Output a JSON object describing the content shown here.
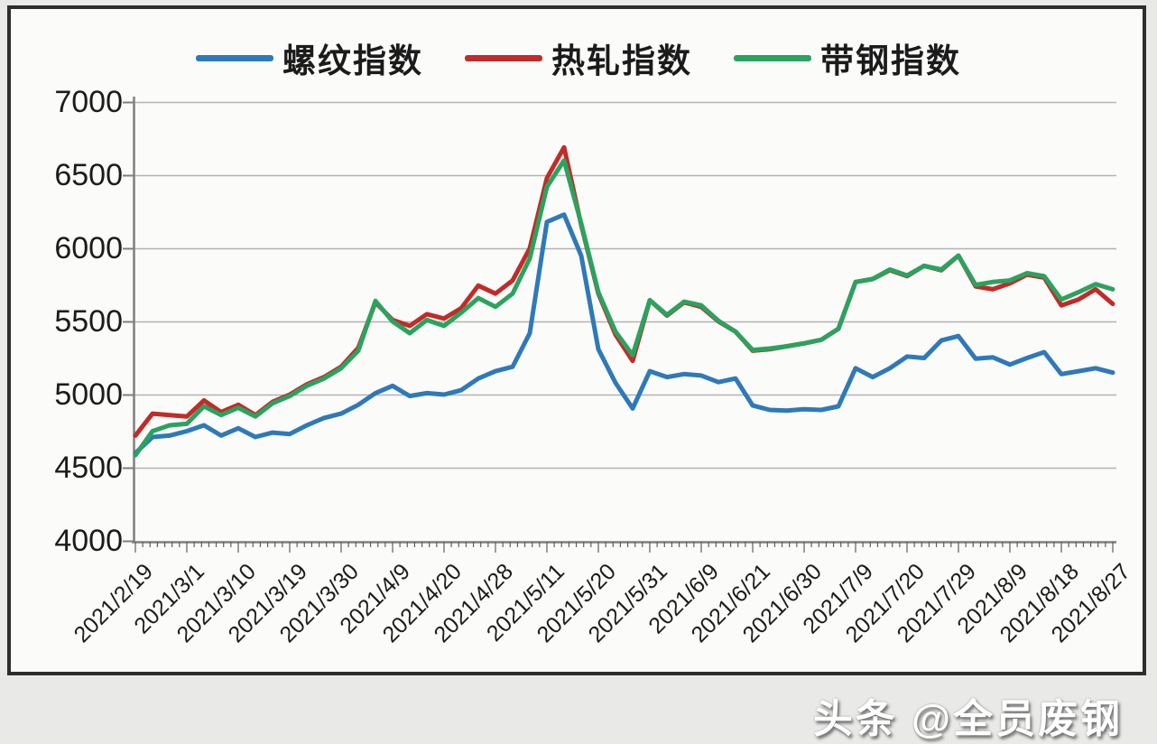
{
  "page": {
    "watermark": "头条 @全员废钢",
    "background_color": "#e9e9e7",
    "card_background": "#fbfbf9",
    "card_border_color": "#2d2d2d"
  },
  "chart_data": {
    "type": "line",
    "title": "",
    "legend_position": "top",
    "grid": "horizontal",
    "y_axis": {
      "min": 4000,
      "max": 7000,
      "step": 500,
      "tick_labels": [
        "7000",
        "6500",
        "6000",
        "5500",
        "5000",
        "4500",
        "4000"
      ]
    },
    "x_tick_labels": [
      "2021/2/19",
      "2021/3/1",
      "2021/3/10",
      "2021/3/19",
      "2021/3/30",
      "2021/4/9",
      "2021/4/20",
      "2021/4/28",
      "2021/5/11",
      "2021/5/20",
      "2021/5/31",
      "2021/6/9",
      "2021/6/21",
      "2021/6/30",
      "2021/7/9",
      "2021/7/20",
      "2021/7/29",
      "2021/8/9",
      "2021/8/18",
      "2021/8/27"
    ],
    "points_per_label_interval": 3,
    "minor_ticks_per_label_interval": 7,
    "series": [
      {
        "name": "螺纹指数",
        "color": "#2e79b9",
        "values": [
          4600,
          4710,
          4720,
          4750,
          4790,
          4720,
          4770,
          4710,
          4740,
          4730,
          4790,
          4840,
          4870,
          4930,
          5010,
          5060,
          4990,
          5010,
          5000,
          5030,
          5110,
          5160,
          5190,
          5420,
          6180,
          6230,
          5950,
          5310,
          5080,
          4905,
          5160,
          5120,
          5140,
          5130,
          5085,
          5110,
          4925,
          4895,
          4890,
          4900,
          4895,
          4920,
          5180,
          5120,
          5180,
          5260,
          5250,
          5370,
          5400,
          5245,
          5255,
          5205,
          5250,
          5290,
          5140,
          5160,
          5180,
          5150
        ]
      },
      {
        "name": "热轧指数",
        "color": "#c32b28",
        "values": [
          4720,
          4870,
          4860,
          4850,
          4960,
          4880,
          4930,
          4860,
          4950,
          5000,
          5070,
          5120,
          5190,
          5320,
          5630,
          5510,
          5470,
          5550,
          5520,
          5590,
          5745,
          5690,
          5780,
          6000,
          6480,
          6690,
          6160,
          5690,
          5410,
          5230,
          5645,
          5540,
          5630,
          5600,
          5500,
          5430,
          5300,
          5310,
          5330,
          5350,
          5375,
          5450,
          5770,
          5790,
          5850,
          5810,
          5880,
          5850,
          5950,
          5740,
          5720,
          5760,
          5820,
          5800,
          5610,
          5650,
          5720,
          5620
        ]
      },
      {
        "name": "带钢指数",
        "color": "#2aa35f",
        "values": [
          4585,
          4750,
          4790,
          4800,
          4920,
          4860,
          4910,
          4850,
          4940,
          4990,
          5060,
          5110,
          5180,
          5300,
          5640,
          5500,
          5420,
          5510,
          5470,
          5560,
          5660,
          5600,
          5690,
          5930,
          6420,
          6600,
          6170,
          5700,
          5430,
          5270,
          5645,
          5545,
          5635,
          5610,
          5505,
          5430,
          5305,
          5315,
          5330,
          5350,
          5375,
          5450,
          5770,
          5790,
          5855,
          5815,
          5880,
          5855,
          5950,
          5750,
          5770,
          5780,
          5830,
          5810,
          5650,
          5700,
          5755,
          5720
        ]
      }
    ],
    "colors": {
      "axis": "#7f7f7f",
      "grid": "#b3b3b3",
      "text": "#1c1c1c"
    }
  }
}
